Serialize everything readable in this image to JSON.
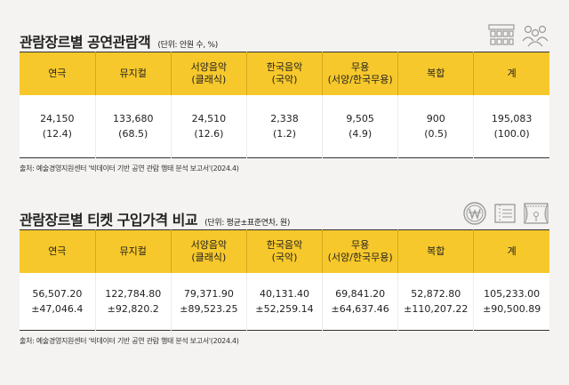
{
  "table1": {
    "title": "관람장르별 공연관람객",
    "unit": "(단위: 안원 수, %)",
    "headers": [
      {
        "l1": "연극",
        "l2": ""
      },
      {
        "l1": "뮤지컬",
        "l2": ""
      },
      {
        "l1": "서양음악",
        "l2": "(클래식)"
      },
      {
        "l1": "한국음악",
        "l2": "(국악)"
      },
      {
        "l1": "무용",
        "l2": "(서양/한국무용)"
      },
      {
        "l1": "복합",
        "l2": ""
      },
      {
        "l1": "계",
        "l2": ""
      }
    ],
    "rows": [
      {
        "v1": "24,150",
        "v2": "(12.4)"
      },
      {
        "v1": "133,680",
        "v2": "(68.5)"
      },
      {
        "v1": "24,510",
        "v2": "(12.6)"
      },
      {
        "v1": "2,338",
        "v2": "(1.2)"
      },
      {
        "v1": "9,505",
        "v2": "(4.9)"
      },
      {
        "v1": "900",
        "v2": "(0.5)"
      },
      {
        "v1": "195,083",
        "v2": "(100.0)"
      }
    ],
    "source": "출처: 예술경영지원센터 '빅데이터 기반 공연 관람 행태 분석 보고서'(2024.4)",
    "icons": [
      "theater-seats-icon",
      "audience-icon"
    ]
  },
  "table2": {
    "title": "관람장르별 티켓 구입가격 비교",
    "unit": "(단위: 평균±표준연차, 원)",
    "headers": [
      {
        "l1": "연극",
        "l2": ""
      },
      {
        "l1": "뮤지컬",
        "l2": ""
      },
      {
        "l1": "서양음악",
        "l2": "(클래식)"
      },
      {
        "l1": "한국음악",
        "l2": "(국악)"
      },
      {
        "l1": "무용",
        "l2": "(서양/한국무용)"
      },
      {
        "l1": "복합",
        "l2": ""
      },
      {
        "l1": "계",
        "l2": ""
      }
    ],
    "rows": [
      {
        "v1": "56,507.20",
        "v2": "±47,046.4"
      },
      {
        "v1": "122,784.80",
        "v2": "±92,820.2"
      },
      {
        "v1": "79,371.90",
        "v2": "±89,523.25"
      },
      {
        "v1": "40,131.40",
        "v2": "±52,259.14"
      },
      {
        "v1": "69,841.20",
        "v2": "±64,637.46"
      },
      {
        "v1": "52,872.80",
        "v2": "±110,207.22"
      },
      {
        "v1": "105,233.00",
        "v2": "±90,500.89"
      }
    ],
    "source": "출처: 예술경영지원센터 '빅데이터 기반 공연 관람 행태 분석 보고서'(2024.4)",
    "icons": [
      "won-coin-icon",
      "ticket-icon",
      "stage-icon"
    ]
  }
}
